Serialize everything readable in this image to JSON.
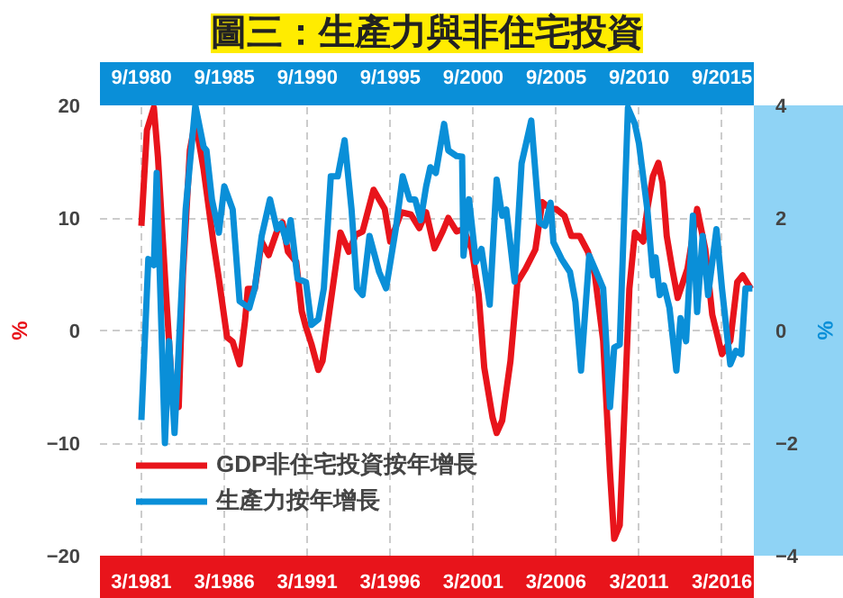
{
  "chart_data": {
    "type": "line",
    "title": "圖三：生產力與非住宅投資",
    "ylabel": "%",
    "y2label": "%",
    "xlim": [
      "1978-09",
      "2018-02"
    ],
    "xticks": [
      {
        "value": "1981-03",
        "label": "3/1981"
      },
      {
        "value": "1986-03",
        "label": "3/1986"
      },
      {
        "value": "1991-03",
        "label": "3/1991"
      },
      {
        "value": "1996-03",
        "label": "3/1996"
      },
      {
        "value": "2001-03",
        "label": "3/2001"
      },
      {
        "value": "2006-03",
        "label": "3/2006"
      },
      {
        "value": "2011-03",
        "label": "3/2011"
      },
      {
        "value": "2016-03",
        "label": "3/2016"
      }
    ],
    "x2lim": [
      "1978-03",
      "2017-08"
    ],
    "x2ticks": [
      {
        "value": "1980-09",
        "label": "9/1980"
      },
      {
        "value": "1985-09",
        "label": "9/1985"
      },
      {
        "value": "1990-09",
        "label": "9/1990"
      },
      {
        "value": "1995-09",
        "label": "9/1995"
      },
      {
        "value": "2000-09",
        "label": "9/2000"
      },
      {
        "value": "2005-09",
        "label": "9/2005"
      },
      {
        "value": "2010-09",
        "label": "9/2010"
      },
      {
        "value": "2015-09",
        "label": "9/2015"
      }
    ],
    "ylim": [
      -20,
      20
    ],
    "yticks": [
      -20,
      -10,
      0,
      10,
      20
    ],
    "y2lim": [
      -4,
      4
    ],
    "y2ticks": [
      -4,
      -2,
      0,
      2,
      4
    ],
    "grid": true,
    "legend": "bottom left",
    "line_style": "solid",
    "series": [
      {
        "name": "GDP非住宅投資按年增長",
        "color": "#e8141b",
        "x": [
          "1981-03",
          "1981-07",
          "1981-12",
          "1982-03",
          "1982-08",
          "1983-01",
          "1983-06",
          "1983-09",
          "1984-02",
          "1984-06",
          "1984-12",
          "1985-07",
          "1985-11",
          "1986-05",
          "1986-09",
          "1987-02",
          "1987-06",
          "1987-08",
          "1988-01",
          "1988-06",
          "1988-11",
          "1989-05",
          "1989-09",
          "1990-01",
          "1990-07",
          "1990-11",
          "1991-02",
          "1991-06",
          "1991-11",
          "1992-02",
          "1992-08",
          "1993-03",
          "1993-09",
          "1994-02",
          "1994-07",
          "1995-03",
          "1995-11",
          "1996-03",
          "1996-11",
          "1997-06",
          "1997-12",
          "1998-05",
          "1998-11",
          "1999-05",
          "1999-09",
          "2000-03",
          "2000-08",
          "2001-02",
          "2001-07",
          "2001-11",
          "2002-05",
          "2002-08",
          "2002-12",
          "2003-06",
          "2003-11",
          "2004-05",
          "2004-12",
          "2005-05",
          "2005-11",
          "2006-03",
          "2006-09",
          "2007-02",
          "2007-08",
          "2008-02",
          "2008-07",
          "2009-01",
          "2009-06",
          "2009-09",
          "2010-01",
          "2010-05",
          "2010-08",
          "2010-12",
          "2011-06",
          "2011-09",
          "2012-01",
          "2012-05",
          "2012-08",
          "2012-11",
          "2013-03",
          "2013-07",
          "2014-02",
          "2014-09",
          "2015-03",
          "2015-08",
          "2016-03",
          "2016-09",
          "2017-02",
          "2017-06",
          "2017-12"
        ],
        "values": [
          9.3,
          17.8,
          19.8,
          15.4,
          4.9,
          -5,
          -6.8,
          4.9,
          16,
          18.6,
          14.3,
          7.9,
          4.6,
          -0.6,
          -1,
          -3,
          0.9,
          3.7,
          3.7,
          7.9,
          6.7,
          8.8,
          9.6,
          7,
          6.1,
          1.7,
          0.3,
          -1.2,
          -3.5,
          -2.7,
          2.6,
          8.7,
          7,
          8.5,
          8.8,
          12.5,
          10.8,
          7.9,
          10.5,
          10.3,
          9.1,
          10.5,
          7.3,
          8.8,
          10,
          8.8,
          9,
          7.2,
          3.2,
          -3.3,
          -7.7,
          -9.1,
          -8,
          -2.7,
          4.3,
          5.5,
          7.2,
          11.4,
          10.8,
          10.8,
          10.2,
          8.4,
          8.4,
          7,
          5,
          -0.9,
          -12.6,
          -18.5,
          -17.3,
          -5.6,
          3.7,
          8.7,
          7.9,
          10.8,
          13.7,
          14.9,
          13.1,
          8.4,
          5.5,
          2.9,
          5.5,
          10.8,
          7.2,
          1.4,
          -2.1,
          -0.9,
          4.3,
          4.9,
          3.7
        ]
      },
      {
        "name": "生產力按年增長",
        "color": "#0a8fd8",
        "axis": "y2",
        "x": [
          "1981-03",
          "1981-08",
          "1981-12",
          "1982-02",
          "1982-08",
          "1982-11",
          "1983-03",
          "1983-11",
          "1984-06",
          "1984-12",
          "1985-02",
          "1985-06",
          "1985-11",
          "1986-03",
          "1986-09",
          "1987-02",
          "1987-09",
          "1988-01",
          "1988-06",
          "1988-12",
          "1989-05",
          "1989-08",
          "1989-12",
          "1990-03",
          "1990-08",
          "1991-02",
          "1991-06",
          "1991-11",
          "1992-03",
          "1992-08",
          "1993-01",
          "1993-06",
          "1993-11",
          "1994-03",
          "1994-07",
          "1994-12",
          "1995-07",
          "1995-12",
          "1996-07",
          "1996-12",
          "1997-05",
          "1997-09",
          "1998-01",
          "1998-05",
          "1998-08",
          "1998-12",
          "1999-06",
          "1999-09",
          "2000-03",
          "2000-07",
          "2000-08",
          "2000-12",
          "2001-05",
          "2001-09",
          "2002-03",
          "2002-08",
          "2002-12",
          "2003-03",
          "2003-09",
          "2004-02",
          "2004-09",
          "2005-03",
          "2005-07",
          "2005-11",
          "2006-01",
          "2006-07",
          "2007-01",
          "2007-05",
          "2007-09",
          "2008-03",
          "2008-07",
          "2009-01",
          "2009-06",
          "2009-09",
          "2010-01",
          "2010-07",
          "2010-12",
          "2011-03",
          "2011-09",
          "2012-01",
          "2012-03",
          "2012-06",
          "2012-09",
          "2013-01",
          "2013-06",
          "2013-09",
          "2014-01",
          "2014-06",
          "2014-09",
          "2015-01",
          "2015-05",
          "2015-11",
          "2016-03",
          "2016-09",
          "2017-01",
          "2017-05",
          "2017-08",
          "2018-01"
        ],
        "values": [
          -1.59,
          1.27,
          1.16,
          2.8,
          -2.0,
          -0.19,
          -1.82,
          2.15,
          4.0,
          3.26,
          3.2,
          2.33,
          1.74,
          2.56,
          2.15,
          0.52,
          0.4,
          0.75,
          1.68,
          2.33,
          1.8,
          1.9,
          1.57,
          1.96,
          0.92,
          0.86,
          0.1,
          0.2,
          0.75,
          2.74,
          2.74,
          3.38,
          2.15,
          0.75,
          0.63,
          1.68,
          1.04,
          0.75,
          1.8,
          2.74,
          2.33,
          2.33,
          1.96,
          2.56,
          2.9,
          2.8,
          3.67,
          3.2,
          3.1,
          3.09,
          1.33,
          2.33,
          1.22,
          1.45,
          0.46,
          2.68,
          2.04,
          2.15,
          0.87,
          2.97,
          3.73,
          1.92,
          1.86,
          2.27,
          1.57,
          1.27,
          1.04,
          0.51,
          -0.71,
          1.33,
          1.1,
          0.75,
          -1.36,
          -0.3,
          -0.25,
          3.96,
          3.67,
          3.32,
          2.15,
          0.98,
          1.3,
          0.63,
          0.8,
          0.4,
          -0.71,
          0.22,
          -0.19,
          2.04,
          0.33,
          1.68,
          0.63,
          1.8,
          0.75,
          -0.6,
          -0.36,
          -0.42,
          0.75,
          0.75
        ]
      }
    ]
  }
}
